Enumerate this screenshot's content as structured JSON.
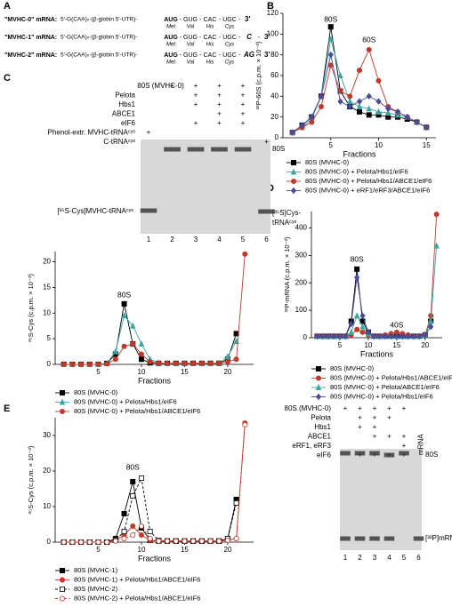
{
  "panel_labels": [
    "A",
    "B",
    "C",
    "D",
    "E"
  ],
  "mrna_constructs": [
    {
      "name": "\"MVHC-0\" mRNA:",
      "prefix": "5'-G(CAA)ₙ-(β-globin 5'-UTR)-",
      "codons": [
        "AUG",
        "GUG",
        "CAC",
        "UGC"
      ],
      "amino_acids": [
        "Met",
        "Val",
        "His",
        "Cys"
      ],
      "end": "3'"
    },
    {
      "name": "\"MVHC-1\" mRNA:",
      "prefix": "5'-G(CAA)ₙ-(β-globin 5'-UTR)-",
      "codons": [
        "AUG",
        "GUG",
        "CAC",
        "UGC"
      ],
      "amino_acids": [
        "Met",
        "Val",
        "His",
        "Cys"
      ],
      "extra": "C",
      "end": "3'"
    },
    {
      "name": "\"MVHC-2\" mRNA:",
      "prefix": "5'-G(CAA)ₙ-(β-globin 5'-UTR)-",
      "codons": [
        "AUG",
        "GUG",
        "CAC",
        "UGC"
      ],
      "amino_acids": [
        "Met",
        "Val",
        "His",
        "Cys"
      ],
      "extra": "AG",
      "end": "3'"
    }
  ],
  "gels": [
    {
      "rows": [
        {
          "label": "80S (MVHC-0)",
          "marks": [
            null,
            "+",
            "+",
            "+",
            "+",
            null
          ]
        },
        {
          "label": "Pelota",
          "marks": [
            null,
            null,
            "+",
            "+",
            "+",
            null
          ]
        },
        {
          "label": "Hbs1",
          "marks": [
            null,
            null,
            "+",
            "+",
            "+",
            null
          ]
        },
        {
          "label": "ABCE1",
          "marks": [
            null,
            null,
            null,
            "+",
            "+",
            null
          ]
        },
        {
          "label": "eIF6",
          "marks": [
            null,
            null,
            "+",
            "+",
            "+",
            null
          ]
        },
        {
          "label": "Phenol-extr. MVHC-tRNAᶜʸˢ",
          "marks": [
            "+",
            null,
            null,
            null,
            null,
            null
          ]
        },
        {
          "label": "C-tRNAᶜʸˢ",
          "marks": [
            null,
            null,
            null,
            null,
            null,
            "+"
          ]
        }
      ],
      "lanes": [
        1,
        2,
        3,
        4,
        5,
        6
      ],
      "bands": [
        "80S",
        "[³⁵S-Cys]MVHC-tRNAᶜʸˢ",
        "[³⁵S]Cys-",
        "tRNAᶜʸˢ"
      ]
    },
    {
      "rows": [
        {
          "label": "80S (MVHC-0)",
          "marks": [
            "+",
            "+",
            "+",
            "+",
            "+",
            null
          ]
        },
        {
          "label": "Pelota",
          "marks": [
            null,
            "+",
            "+",
            "+",
            null,
            null
          ]
        },
        {
          "label": "Hbs1",
          "marks": [
            null,
            "+",
            "+",
            null,
            null,
            null
          ]
        },
        {
          "label": "ABCE1",
          "marks": [
            null,
            null,
            "+",
            "+",
            "+",
            null
          ]
        },
        {
          "label": "eRF1, eRF3",
          "marks": [
            null,
            null,
            null,
            null,
            "+",
            null
          ]
        },
        {
          "label": "eIF6",
          "marks": [
            null,
            "+",
            "+",
            "+",
            "+",
            null
          ]
        }
      ],
      "column_label": "mRNA",
      "lanes": [
        1,
        2,
        3,
        4,
        5,
        6
      ],
      "bands": [
        "80S",
        "[³²P]mRNA"
      ]
    }
  ],
  "chart_data": [
    {
      "type": "line",
      "ylabel": "³²P-60S (c.p.m. × 10⁻³)",
      "xlabel": "Fractions",
      "annotations": [
        "80S",
        "60S"
      ],
      "x": [
        1,
        2,
        3,
        4,
        5,
        6,
        7,
        8,
        9,
        10,
        11,
        12,
        13,
        14,
        15
      ],
      "xlim": [
        0,
        16
      ],
      "xticks": [
        5,
        10,
        15
      ],
      "ylim": [
        0,
        120
      ],
      "yticks": [
        0,
        20,
        40,
        60,
        80,
        100,
        120
      ],
      "series": [
        {
          "name": "80S (MVHC-0)",
          "color": "#000000",
          "marker": "square",
          "values": [
            5,
            12,
            20,
            40,
            107,
            45,
            30,
            25,
            22,
            22,
            20,
            20,
            18,
            15,
            10
          ]
        },
        {
          "name": "80S (MVHC-0) + Pelota/Hbs1/eIF6",
          "color": "#3aa6a0",
          "marker": "triangle",
          "values": [
            5,
            10,
            18,
            40,
            95,
            60,
            35,
            30,
            28,
            25,
            24,
            22,
            20,
            15,
            10
          ]
        },
        {
          "name": "80S (MVHC-0) + Pelota/Hbs1/ABCE1/eIF6",
          "color": "#c0392b",
          "marker": "circle",
          "values": [
            5,
            10,
            15,
            30,
            70,
            45,
            40,
            65,
            85,
            55,
            30,
            25,
            20,
            15,
            10
          ]
        },
        {
          "name": "80S (MVHC-0) + eRF1/eRF3/ABCE1/eIF6",
          "color": "#4a4a9c",
          "marker": "diamond",
          "values": [
            5,
            12,
            20,
            40,
            80,
            35,
            30,
            35,
            40,
            35,
            28,
            25,
            20,
            15,
            10
          ]
        }
      ]
    },
    {
      "type": "line",
      "ylabel": "³⁵S-Cys (c.p.m. × 10⁻³)",
      "xlabel": "Fractions",
      "annotations": [
        "80S"
      ],
      "x": [
        1,
        2,
        3,
        4,
        5,
        6,
        7,
        8,
        9,
        10,
        11,
        12,
        13,
        14,
        15,
        16,
        17,
        18,
        19,
        20,
        21,
        22
      ],
      "xlim": [
        0,
        23
      ],
      "xticks": [
        5,
        10,
        15,
        20
      ],
      "ylim": [
        0,
        22
      ],
      "yticks": [
        0,
        5,
        10,
        15,
        20
      ],
      "series": [
        {
          "name": "80S (MVHC-0)",
          "color": "#000000",
          "marker": "square",
          "values": [
            0,
            0,
            0,
            0,
            0,
            0.2,
            2,
            11.8,
            4,
            1,
            0.3,
            0.2,
            0.2,
            0.2,
            0.2,
            0.2,
            0.2,
            0.2,
            0.2,
            1,
            6,
            null
          ]
        },
        {
          "name": "80S (MVHC-0) + Pelota/Hbs1/eIF6",
          "color": "#3aa6a0",
          "marker": "triangle",
          "values": [
            0,
            0,
            0,
            0,
            0,
            0.2,
            2.5,
            9.5,
            7.5,
            4,
            1,
            0.3,
            0.2,
            0.2,
            0.2,
            0.2,
            0.2,
            0.2,
            0.2,
            1.5,
            4.5,
            null
          ]
        },
        {
          "name": "80S (MVHC-0) + Pelota/Hbs1/ABCE1/eIF6",
          "color": "#c0392b",
          "marker": "circle",
          "values": [
            0,
            0,
            0,
            0,
            0,
            0.1,
            1,
            3.5,
            4,
            2,
            0.5,
            0.2,
            0.2,
            0.2,
            0.2,
            0.2,
            0.2,
            0.2,
            0.2,
            0.5,
            1,
            21.5
          ]
        }
      ]
    },
    {
      "type": "line",
      "ylabel": "³²P-mRNA (c.p.m. × 10⁻³)",
      "xlabel": "Fractions",
      "annotations": [
        "80S",
        "40S"
      ],
      "x": [
        1,
        2,
        3,
        4,
        5,
        6,
        7,
        8,
        9,
        10,
        11,
        12,
        13,
        14,
        15,
        16,
        17,
        18,
        19,
        20,
        21,
        22
      ],
      "xlim": [
        0,
        23
      ],
      "xticks": [
        5,
        10,
        15,
        20
      ],
      "ylim": [
        0,
        460
      ],
      "yticks": [
        0,
        100,
        200,
        300,
        400
      ],
      "series": [
        {
          "name": "80S (MVHC-0)",
          "color": "#000000",
          "marker": "square",
          "values": [
            5,
            5,
            5,
            5,
            5,
            5,
            60,
            250,
            60,
            20,
            5,
            5,
            5,
            5,
            5,
            5,
            5,
            5,
            5,
            10,
            60,
            null
          ]
        },
        {
          "name": "80S (MVHC-0) + Pelota/Hbs1/ABCE1/eIF6",
          "color": "#c0392b",
          "marker": "circle",
          "values": [
            5,
            5,
            5,
            5,
            5,
            5,
            10,
            30,
            20,
            10,
            5,
            5,
            10,
            15,
            20,
            15,
            10,
            5,
            5,
            10,
            80,
            450
          ]
        },
        {
          "name": "80S (MVHC-0) + Pelota/ABCE1/eIF6",
          "color": "#3aa6a0",
          "marker": "triangle",
          "values": [
            5,
            5,
            5,
            5,
            5,
            5,
            20,
            80,
            40,
            15,
            5,
            5,
            5,
            5,
            5,
            5,
            5,
            5,
            5,
            10,
            60,
            335
          ]
        },
        {
          "name": "80S (MVHC-0) + Pelota/Hbs1/eIF6",
          "color": "#4a4a9c",
          "marker": "diamond",
          "values": [
            5,
            5,
            5,
            5,
            5,
            5,
            50,
            220,
            80,
            20,
            5,
            5,
            5,
            5,
            5,
            5,
            5,
            5,
            5,
            10,
            40,
            null
          ]
        }
      ]
    },
    {
      "type": "line",
      "ylabel": "³⁵S-Cys (c.p.m. × 10⁻³)",
      "xlabel": "Fractions",
      "annotations": [
        "80S"
      ],
      "x": [
        1,
        2,
        3,
        4,
        5,
        6,
        7,
        8,
        9,
        10,
        11,
        12,
        13,
        14,
        15,
        16,
        17,
        18,
        19,
        20,
        21,
        22
      ],
      "xlim": [
        0,
        23
      ],
      "xticks": [
        5,
        10,
        15,
        20
      ],
      "ylim": [
        0,
        35
      ],
      "yticks": [
        0,
        10,
        20,
        30
      ],
      "series": [
        {
          "name": "80S (MVHC-1)",
          "color": "#000000",
          "marker": "square",
          "values": [
            0,
            0,
            0,
            0,
            0,
            0,
            1,
            8,
            17,
            4,
            0.5,
            0.3,
            0.3,
            0.3,
            0.3,
            0.3,
            0.3,
            0.3,
            0.3,
            1,
            12,
            null
          ]
        },
        {
          "name": "80S (MVHC-1) + Pelota/Hbs1/ABCE1/eIF6",
          "color": "#c0392b",
          "marker": "circle",
          "values": [
            0,
            0,
            0,
            0,
            0,
            0,
            0.5,
            2,
            4.5,
            2,
            0.5,
            0.3,
            0.3,
            0.3,
            0.3,
            0.3,
            0.3,
            0.3,
            0.3,
            0.5,
            1,
            33.5
          ]
        },
        {
          "name": "80S (MVHC-2)",
          "color": "#000000",
          "marker": "open-square",
          "dash": true,
          "values": [
            0,
            0,
            0,
            0,
            0,
            0,
            0.5,
            3,
            13,
            18,
            3,
            0.5,
            0.3,
            0.3,
            0.3,
            0.3,
            0.3,
            0.3,
            0.3,
            1,
            11,
            null
          ]
        },
        {
          "name": "80S (MVHC-2) + Pelota/Hbs1/ABCE1/eIF6",
          "color": "#c0392b",
          "marker": "open-circle",
          "dash": true,
          "values": [
            0,
            0,
            0,
            0,
            0,
            0,
            0.3,
            1,
            2,
            4.5,
            1,
            0.3,
            0.3,
            0.3,
            0.3,
            0.3,
            0.3,
            0.3,
            0.3,
            0.5,
            1,
            33
          ]
        }
      ]
    }
  ]
}
